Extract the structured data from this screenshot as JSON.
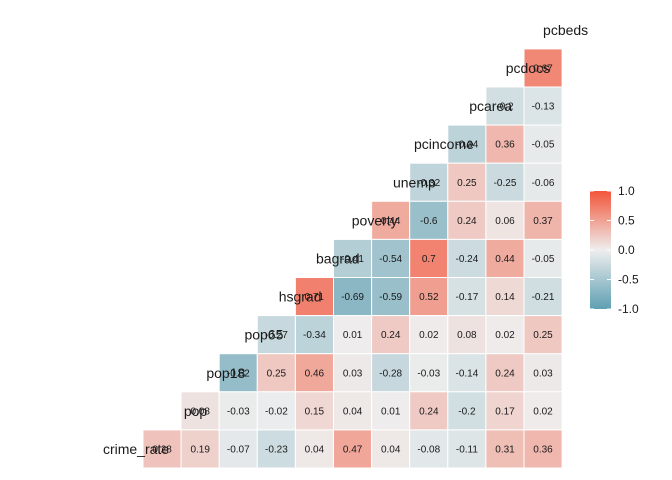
{
  "chart_data": {
    "type": "heatmap",
    "title": "",
    "variables": [
      "crime_rate",
      "pop",
      "pop18",
      "pop65",
      "hsgrad",
      "bagrad",
      "poverty",
      "unemp",
      "pcincome",
      "pcarea",
      "pcdocs",
      "pcbeds"
    ],
    "rows": [
      {
        "name": "pcbeds",
        "values": []
      },
      {
        "name": "pcdocs",
        "values": [
          0.67
        ]
      },
      {
        "name": "pcarea",
        "values": [
          -0.2,
          -0.13
        ]
      },
      {
        "name": "pcincome",
        "values": [
          -0.34,
          0.36,
          -0.05
        ]
      },
      {
        "name": "unemp",
        "values": [
          -0.32,
          0.25,
          -0.25,
          -0.06
        ]
      },
      {
        "name": "poverty",
        "values": [
          0.44,
          -0.6,
          0.24,
          0.06,
          0.37
        ]
      },
      {
        "name": "bagrad",
        "values": [
          -0.41,
          -0.54,
          0.7,
          -0.24,
          0.44,
          -0.05
        ]
      },
      {
        "name": "hsgrad",
        "values": [
          0.71,
          -0.69,
          -0.59,
          0.52,
          -0.17,
          0.14,
          -0.21
        ]
      },
      {
        "name": "pop65",
        "values": [
          -0.27,
          -0.34,
          0.01,
          0.24,
          0.02,
          0.08,
          0.02,
          0.25
        ]
      },
      {
        "name": "pop18",
        "values": [
          -0.62,
          0.25,
          0.46,
          0.03,
          -0.28,
          -0.03,
          -0.14,
          0.24,
          0.03
        ]
      },
      {
        "name": "pop",
        "values": [
          0.08,
          -0.03,
          -0.02,
          0.15,
          0.04,
          0.01,
          0.24,
          -0.2,
          0.17,
          0.02
        ]
      },
      {
        "name": "crime_rate",
        "values": [
          0.28,
          0.19,
          -0.07,
          -0.23,
          0.04,
          0.47,
          0.04,
          -0.08,
          -0.11,
          0.31,
          0.36
        ]
      }
    ],
    "color_scale": {
      "low": "#5e9fb2",
      "mid": "#eeeeee",
      "high": "#f2553a",
      "limits": [
        -1.0,
        1.0
      ]
    },
    "legend": {
      "position": "right",
      "ticks": [
        "1.0",
        "0.5",
        "0.0",
        "-0.5",
        "-1.0"
      ]
    }
  }
}
